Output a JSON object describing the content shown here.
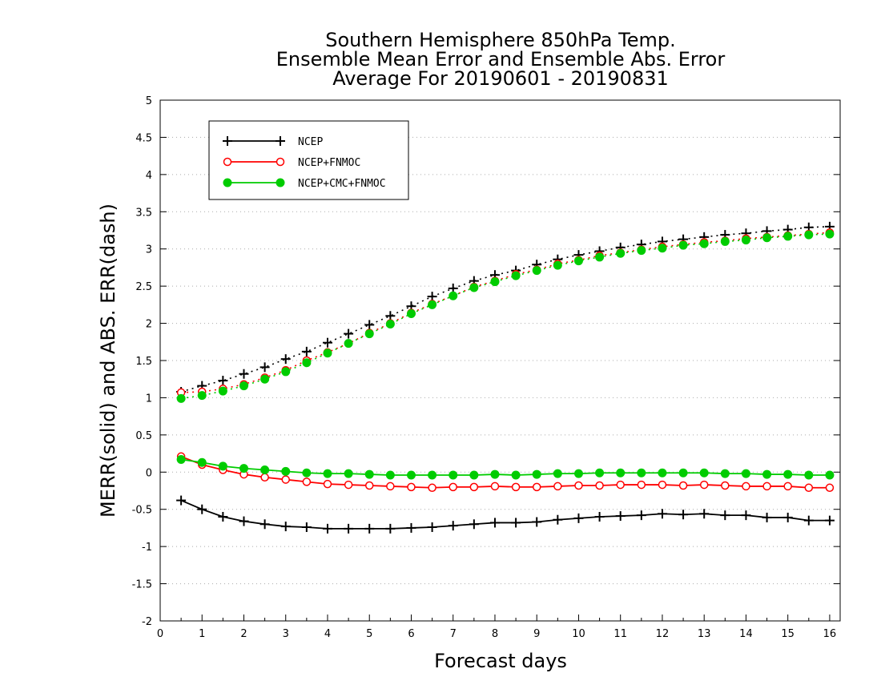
{
  "chart_data": {
    "type": "line",
    "title": [
      "Southern Hemisphere 850hPa Temp.",
      "Ensemble Mean Error and Ensemble Abs. Error",
      "Average For 20190601 - 20190831"
    ],
    "xlabel": "Forecast days",
    "ylabel": "MERR(solid) and ABS. ERR(dash)",
    "xlim": [
      0,
      16.25
    ],
    "ylim": [
      -2,
      5
    ],
    "xticks": [
      0,
      1,
      2,
      3,
      4,
      5,
      6,
      7,
      8,
      9,
      10,
      11,
      12,
      13,
      14,
      15,
      16
    ],
    "yticks": [
      -2,
      -1.5,
      -1,
      -0.5,
      0,
      0.5,
      1,
      1.5,
      2,
      2.5,
      3,
      3.5,
      4,
      4.5,
      5
    ],
    "grid": "horizontal dotted",
    "legend_position": "top-left",
    "x": [
      0.5,
      1,
      1.5,
      2,
      2.5,
      3,
      3.5,
      4,
      4.5,
      5,
      5.5,
      6,
      6.5,
      7,
      7.5,
      8,
      8.5,
      9,
      9.5,
      10,
      10.5,
      11,
      11.5,
      12,
      12.5,
      13,
      13.5,
      14,
      14.5,
      15,
      15.5,
      16
    ],
    "series": [
      {
        "name": "NCEP",
        "color": "#000000",
        "marker": "plus",
        "merr": [
          -0.38,
          -0.5,
          -0.6,
          -0.66,
          -0.7,
          -0.73,
          -0.74,
          -0.76,
          -0.76,
          -0.76,
          -0.76,
          -0.75,
          -0.74,
          -0.72,
          -0.7,
          -0.68,
          -0.68,
          -0.67,
          -0.64,
          -0.62,
          -0.6,
          -0.59,
          -0.58,
          -0.56,
          -0.57,
          -0.56,
          -0.58,
          -0.58,
          -0.61,
          -0.61,
          -0.65,
          -0.65
        ],
        "abs_err": [
          1.08,
          1.16,
          1.23,
          1.32,
          1.41,
          1.52,
          1.62,
          1.74,
          1.86,
          1.98,
          2.1,
          2.23,
          2.36,
          2.47,
          2.57,
          2.65,
          2.71,
          2.79,
          2.86,
          2.92,
          2.97,
          3.02,
          3.06,
          3.1,
          3.13,
          3.16,
          3.19,
          3.21,
          3.24,
          3.26,
          3.29,
          3.3
        ]
      },
      {
        "name": "NCEP+FNMOC",
        "color": "#ff0000",
        "marker": "open-circle",
        "merr": [
          0.21,
          0.1,
          0.03,
          -0.03,
          -0.07,
          -0.1,
          -0.13,
          -0.16,
          -0.17,
          -0.18,
          -0.19,
          -0.2,
          -0.21,
          -0.2,
          -0.2,
          -0.19,
          -0.2,
          -0.2,
          -0.19,
          -0.18,
          -0.18,
          -0.17,
          -0.17,
          -0.17,
          -0.18,
          -0.17,
          -0.18,
          -0.19,
          -0.19,
          -0.19,
          -0.21,
          -0.21
        ],
        "abs_err": [
          1.07,
          1.08,
          1.12,
          1.18,
          1.27,
          1.37,
          1.5,
          1.61,
          1.73,
          1.87,
          2.0,
          2.14,
          2.26,
          2.37,
          2.49,
          2.57,
          2.66,
          2.72,
          2.8,
          2.85,
          2.91,
          2.95,
          2.99,
          3.03,
          3.06,
          3.09,
          3.11,
          3.14,
          3.16,
          3.18,
          3.2,
          3.22
        ]
      },
      {
        "name": "NCEP+CMC+FNMOC",
        "color": "#00cc00",
        "marker": "filled-circle",
        "merr": [
          0.17,
          0.13,
          0.08,
          0.05,
          0.03,
          0.01,
          -0.01,
          -0.02,
          -0.02,
          -0.03,
          -0.04,
          -0.04,
          -0.04,
          -0.04,
          -0.04,
          -0.03,
          -0.04,
          -0.03,
          -0.02,
          -0.02,
          -0.01,
          -0.01,
          -0.01,
          -0.01,
          -0.01,
          -0.01,
          -0.02,
          -0.02,
          -0.03,
          -0.03,
          -0.04,
          -0.04
        ],
        "abs_err": [
          0.99,
          1.03,
          1.09,
          1.16,
          1.25,
          1.35,
          1.47,
          1.6,
          1.73,
          1.86,
          1.99,
          2.13,
          2.25,
          2.37,
          2.48,
          2.56,
          2.64,
          2.71,
          2.78,
          2.84,
          2.89,
          2.94,
          2.98,
          3.01,
          3.05,
          3.07,
          3.1,
          3.12,
          3.15,
          3.17,
          3.19,
          3.2
        ]
      }
    ]
  }
}
